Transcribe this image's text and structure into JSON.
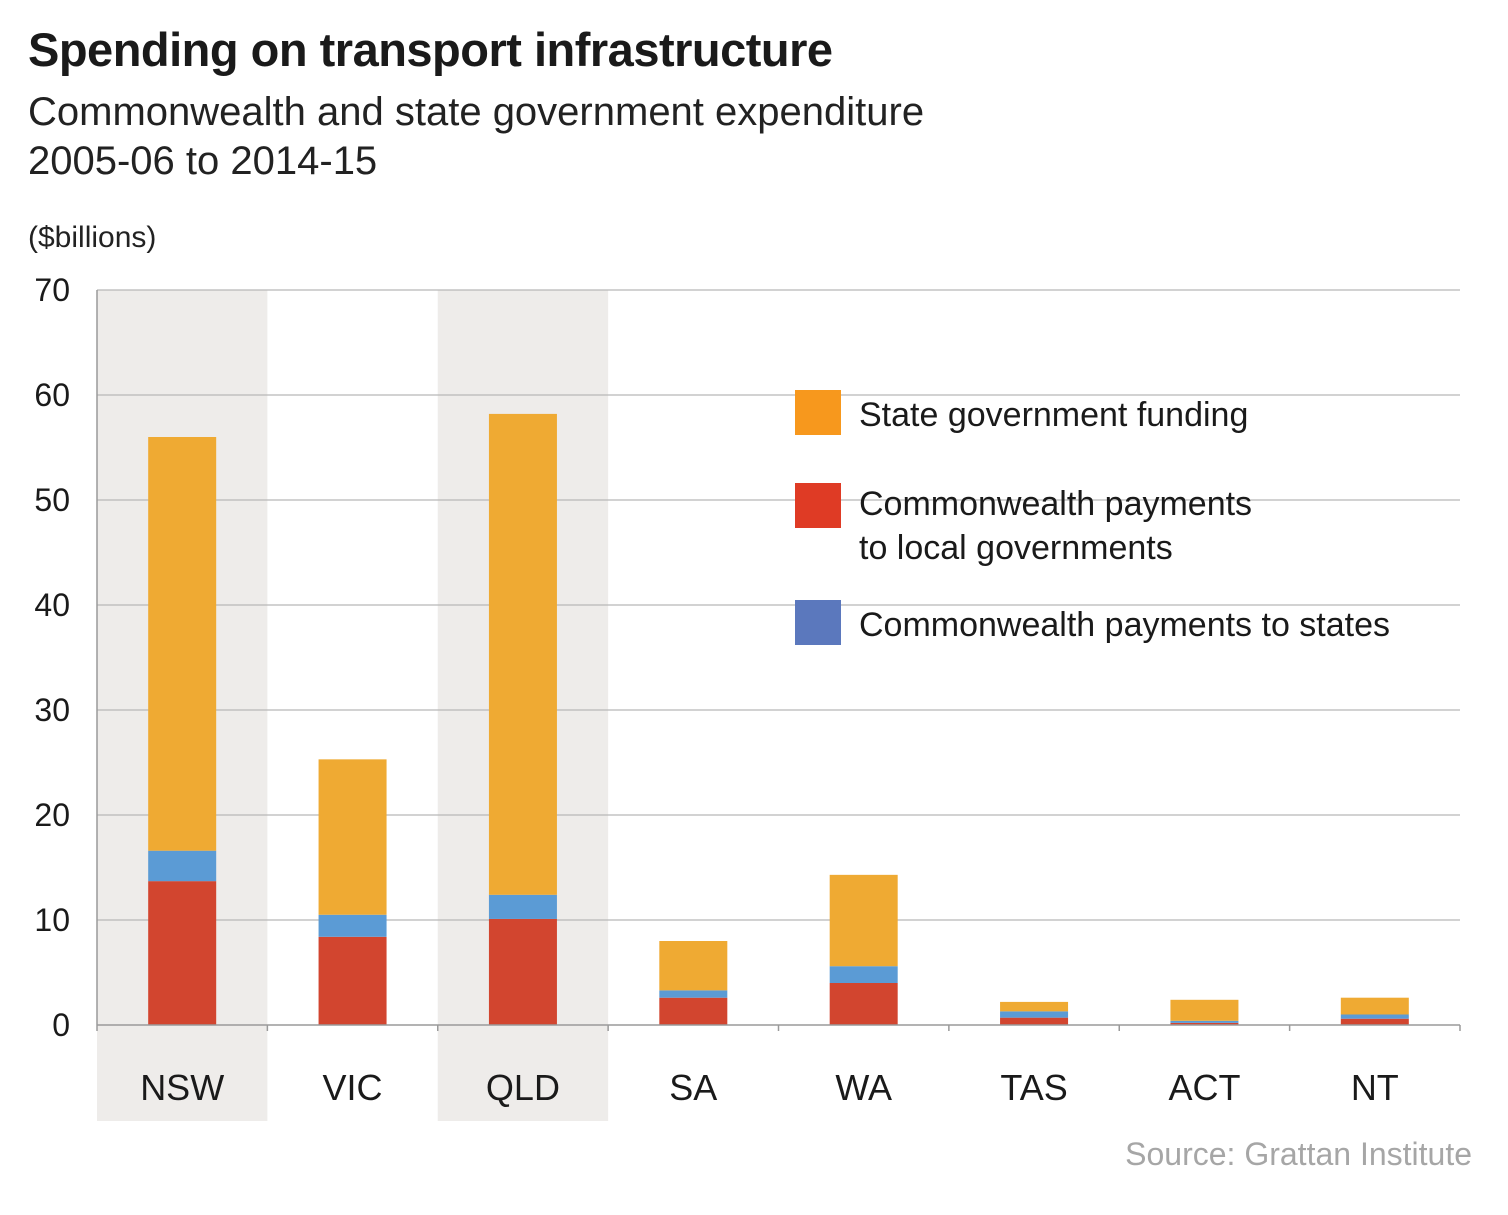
{
  "title": "Spending on transport infrastructure",
  "subtitle_line1": "Commonwealth and state government expenditure",
  "subtitle_line2": "2005-06 to 2014-15",
  "unit_label": "($billions)",
  "source": "Source: Grattan Institute",
  "chart_data": {
    "type": "bar",
    "stacked": true,
    "title": "Spending on transport infrastructure",
    "ylabel": "($billions)",
    "ylim": [
      0,
      70
    ],
    "yticks": [
      "0",
      "10",
      "20",
      "30",
      "40",
      "50",
      "60",
      "70"
    ],
    "grid": true,
    "legend_position": "right",
    "categories": [
      "NSW",
      "VIC",
      "QLD",
      "SA",
      "WA",
      "TAS",
      "ACT",
      "NT"
    ],
    "highlighted_categories": [
      "NSW",
      "QLD"
    ],
    "series": [
      {
        "name": "Commonwealth payments to local governments",
        "color": "#d2452f",
        "values": [
          13.7,
          8.4,
          10.1,
          2.6,
          4.0,
          0.7,
          0.2,
          0.6
        ]
      },
      {
        "name": "Commonwealth payments to states",
        "color": "#5b9bd5",
        "values": [
          2.9,
          2.1,
          2.3,
          0.7,
          1.6,
          0.6,
          0.2,
          0.4
        ]
      },
      {
        "name": "State government funding",
        "color": "#efaa33",
        "values": [
          39.4,
          14.8,
          45.8,
          4.7,
          8.7,
          0.9,
          2.0,
          1.6
        ]
      }
    ],
    "legend": [
      {
        "label_lines": [
          "State government funding"
        ],
        "color": "#f7981d"
      },
      {
        "label_lines": [
          "Commonwealth payments",
          "to local governments"
        ],
        "color": "#df3b25"
      },
      {
        "label_lines": [
          "Commonwealth payments to states"
        ],
        "color": "#5b78bd"
      }
    ]
  }
}
